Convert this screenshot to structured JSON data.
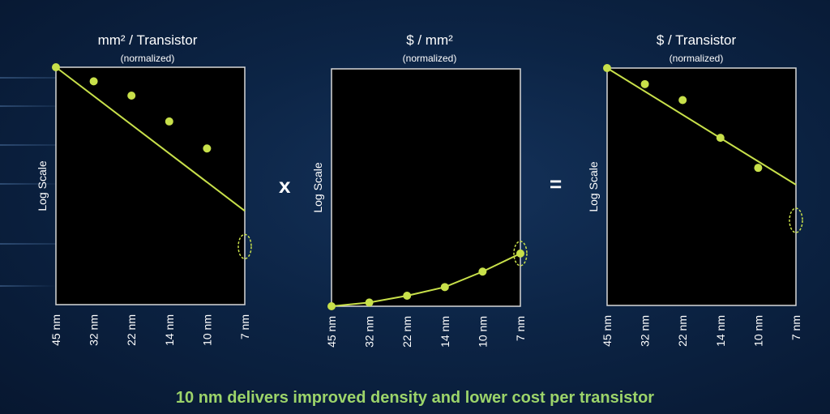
{
  "colors": {
    "accent": "#c8e04a",
    "frame": "#d8d8d8",
    "plot_bg": "#000000",
    "footer": "#9cd46a"
  },
  "chart_data": [
    {
      "type": "line",
      "title": "mm² / Transistor",
      "subtitle": "(normalized)",
      "ylabel": "Log Scale",
      "yscale": "log",
      "categories": [
        "45 nm",
        "32 nm",
        "22 nm",
        "14 nm",
        "10 nm",
        "7 nm"
      ],
      "points": [
        1.0,
        0.75,
        0.56,
        0.33,
        0.19
      ],
      "trend_line": [
        1.0,
        0.053
      ],
      "ylim": [
        0.0078,
        1.0
      ],
      "highlight_category": "7 nm"
    },
    {
      "type": "line",
      "title": "$ / mm²",
      "subtitle": "(normalized)",
      "ylabel": "Log Scale",
      "yscale": "log",
      "categories": [
        "45 nm",
        "32 nm",
        "22 nm",
        "14 nm",
        "10 nm",
        "7 nm"
      ],
      "points": [
        1.0,
        1.08,
        1.24,
        1.48,
        2.03,
        2.94
      ],
      "ylim": [
        1.0,
        128.0
      ],
      "highlight_category": "7 nm"
    },
    {
      "type": "line",
      "title": "$ / Transistor",
      "subtitle": "(normalized)",
      "ylabel": "Log Scale",
      "yscale": "log",
      "categories": [
        "45 nm",
        "32 nm",
        "22 nm",
        "14 nm",
        "10 nm",
        "7 nm"
      ],
      "points": [
        1.0,
        0.72,
        0.52,
        0.24,
        0.13
      ],
      "trend_line": [
        1.0,
        0.092
      ],
      "ylim": [
        0.0078,
        1.0
      ],
      "highlight_category": "7 nm"
    }
  ],
  "operators": {
    "multiply": "x",
    "equals": "="
  },
  "footer": {
    "text": "10 nm delivers improved density and lower cost per transistor"
  }
}
